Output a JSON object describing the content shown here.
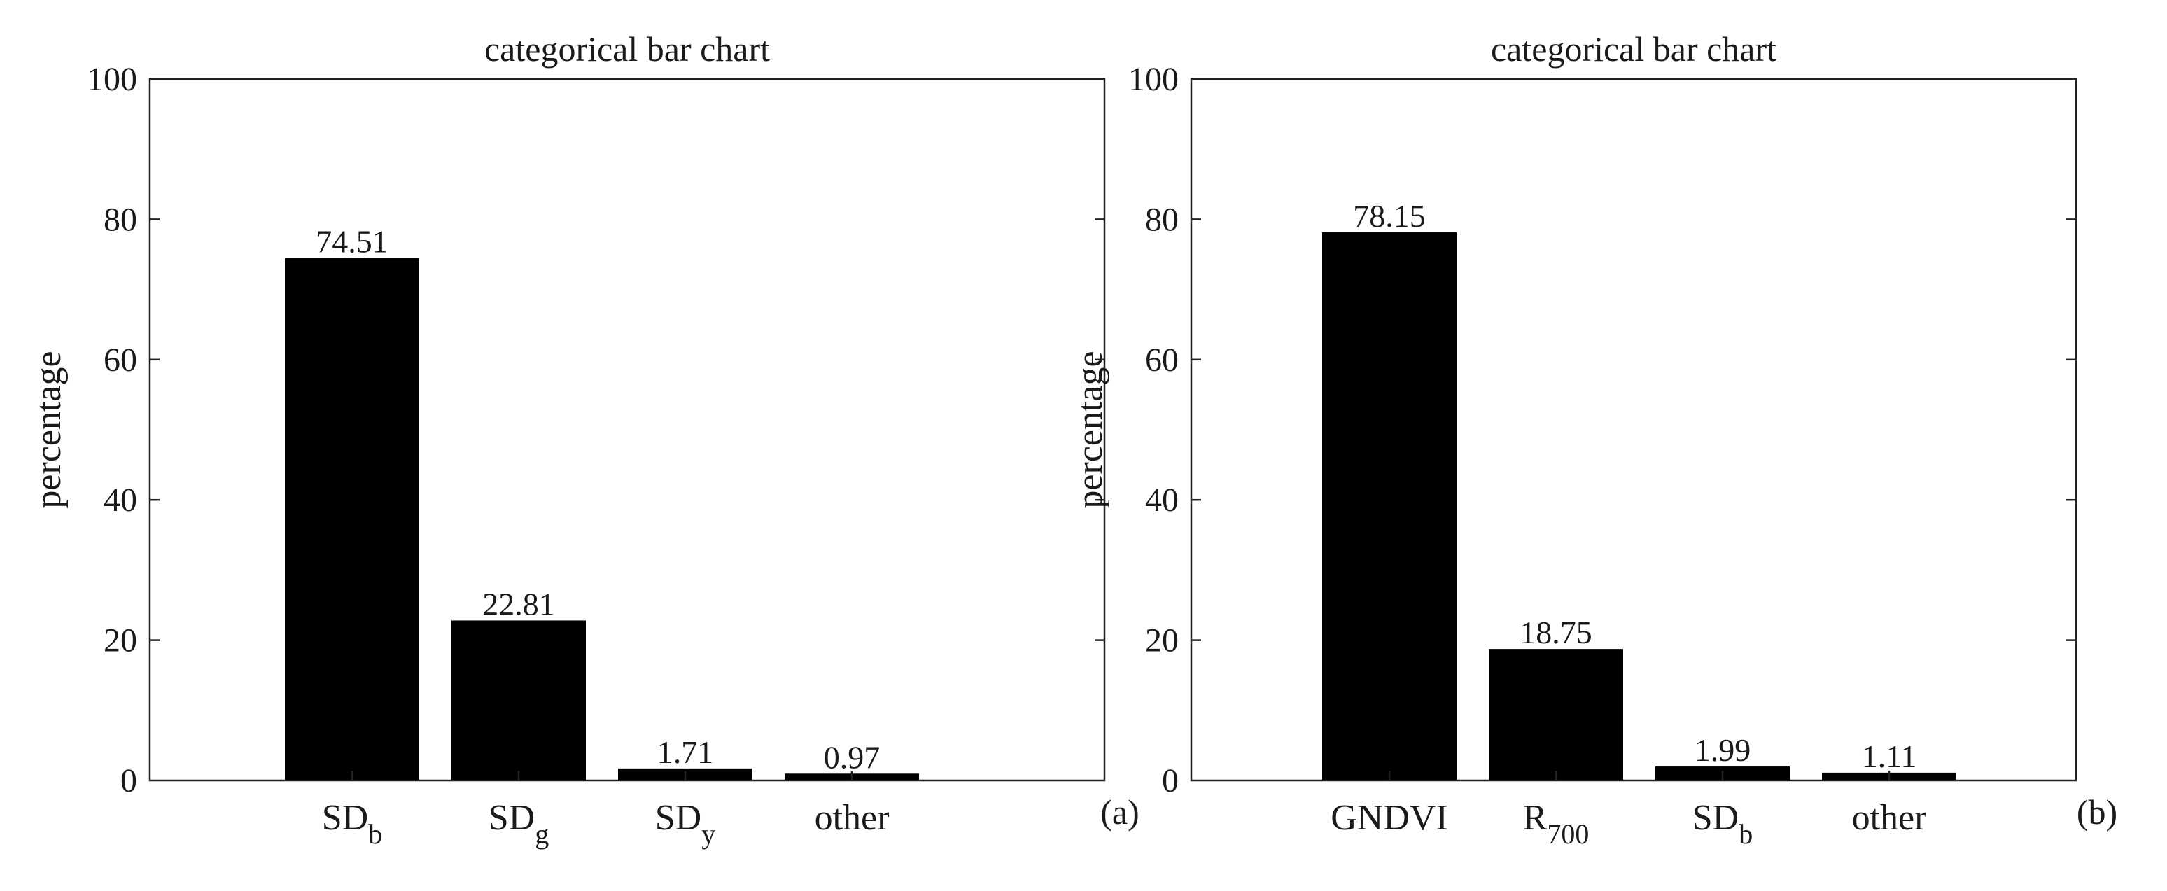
{
  "chart_data": [
    {
      "type": "bar",
      "title": "categorical bar chart",
      "ylabel": "percentage",
      "xlabel": "",
      "ylim": [
        0,
        100
      ],
      "yticks": [
        0,
        20,
        40,
        60,
        80,
        100
      ],
      "panel_label": "(a)",
      "categories": [
        {
          "base": "SD",
          "sub": "b"
        },
        {
          "base": "SD",
          "sub": "g"
        },
        {
          "base": "SD",
          "sub": "y"
        },
        {
          "base": "other",
          "sub": ""
        }
      ],
      "values": [
        74.51,
        22.81,
        1.71,
        0.97
      ],
      "value_labels": [
        "74.51",
        "22.81",
        "1.71",
        "0.97"
      ],
      "bar_color": "#000000",
      "grid": false
    },
    {
      "type": "bar",
      "title": "categorical bar chart",
      "ylabel": "percentage",
      "xlabel": "",
      "ylim": [
        0,
        100
      ],
      "yticks": [
        0,
        20,
        40,
        60,
        80,
        100
      ],
      "panel_label": "(b)",
      "categories": [
        {
          "base": "GNDVI",
          "sub": ""
        },
        {
          "base": "R",
          "sub": "700"
        },
        {
          "base": "SD",
          "sub": "b"
        },
        {
          "base": "other",
          "sub": ""
        }
      ],
      "values": [
        78.15,
        18.75,
        1.99,
        1.11
      ],
      "value_labels": [
        "78.15",
        "18.75",
        "1.99",
        "1.11"
      ],
      "bar_color": "#000000",
      "grid": false
    }
  ]
}
